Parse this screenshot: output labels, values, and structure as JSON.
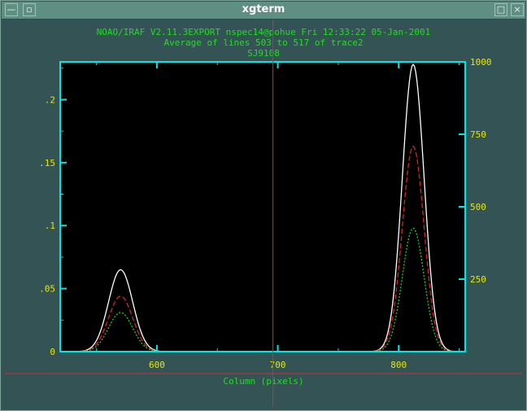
{
  "window": {
    "title": "xgterm",
    "icons": [
      "window-menu-icon",
      "iconify-icon",
      "maximize-icon",
      "close-icon"
    ]
  },
  "header": {
    "line1": "NOAO/IRAF V2.11.3EXPORT nspec14@pohue Fri 12:33:22 05-Jan-2001",
    "line2": "Average of lines 503 to 517 of trace2",
    "line3": "SJ9108"
  },
  "colors": {
    "frame": "#00e5e5",
    "text": "#22dd22",
    "ticklabel": "#e8e800",
    "cursor": "#c8303a",
    "series_white": "#ffffff",
    "series_red": "#e02020",
    "series_green": "#20d020"
  },
  "chart_data": {
    "type": "line",
    "xlabel": "Column (pixels)",
    "xlim": [
      520,
      855
    ],
    "ylim_left": [
      0,
      0.23
    ],
    "ylim_right": [
      0,
      1000
    ],
    "x_ticks": [
      600,
      700,
      800
    ],
    "y_left_ticks": [
      0,
      0.05,
      0.1,
      0.15,
      0.2
    ],
    "y_left_labels": [
      "0",
      ".05",
      ".1",
      ".15",
      ".2"
    ],
    "y_right_ticks": [
      250,
      500,
      750,
      1000
    ],
    "y_right_labels": [
      "250",
      "500",
      "750",
      "1000"
    ],
    "cursor_x": 696,
    "series": [
      {
        "style": "solid",
        "color": "white",
        "peaks": [
          {
            "center": 570,
            "height": 0.065,
            "sigma": 10
          },
          {
            "center": 812,
            "height": 0.228,
            "sigma": 9
          }
        ]
      },
      {
        "style": "dashed",
        "color": "red",
        "peaks": [
          {
            "center": 570,
            "height": 0.044,
            "sigma": 10
          },
          {
            "center": 812,
            "height": 0.163,
            "sigma": 9
          }
        ]
      },
      {
        "style": "dotted",
        "color": "green",
        "peaks": [
          {
            "center": 570,
            "height": 0.031,
            "sigma": 10
          },
          {
            "center": 812,
            "height": 0.098,
            "sigma": 9
          }
        ]
      }
    ]
  }
}
